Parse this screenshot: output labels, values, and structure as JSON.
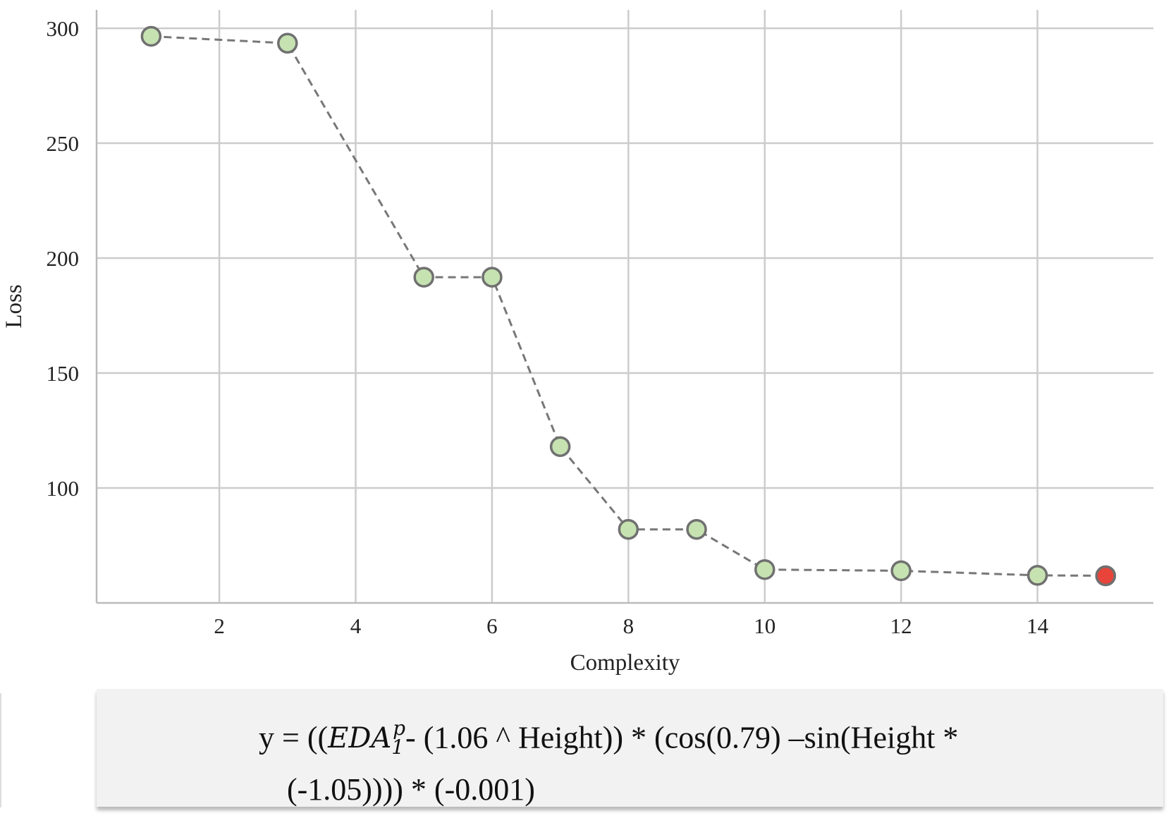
{
  "chart_data": {
    "type": "line",
    "xlabel": "Complexity",
    "ylabel": "Loss",
    "xlim": [
      0.2,
      15.7
    ],
    "ylim": [
      50,
      308
    ],
    "xticks": [
      2,
      4,
      6,
      8,
      10,
      12,
      14
    ],
    "yticks": [
      100,
      150,
      200,
      250,
      300
    ],
    "grid": true,
    "series": [
      {
        "x": [
          1,
          3,
          5,
          6,
          7,
          8,
          9,
          10,
          12,
          14,
          15
        ],
        "y": [
          296.5,
          293.5,
          191.7,
          191.7,
          118.0,
          82.0,
          82.0,
          64.5,
          64.0,
          62.0,
          61.8
        ],
        "line_style": "dashed",
        "line_color": "#777777",
        "marker_color": "#c6e2b1",
        "marker_edge": "#707070"
      }
    ],
    "highlight_point": {
      "x": 15,
      "y": 61.8,
      "color": "#e8443a"
    }
  },
  "formula": {
    "prefix": "y = ((",
    "var_base": "EDA",
    "var_sup": "p",
    "var_sub": "1",
    "rest": "- (1.06 ^ Height)) * (cos(0.79) –sin(Height *",
    "line2": "(-1.05)))) * (-0.001)"
  },
  "colors": {
    "grid": "#cccccc",
    "line": "#777777",
    "marker": "#c6e2b1",
    "highlight": "#e8443a"
  }
}
